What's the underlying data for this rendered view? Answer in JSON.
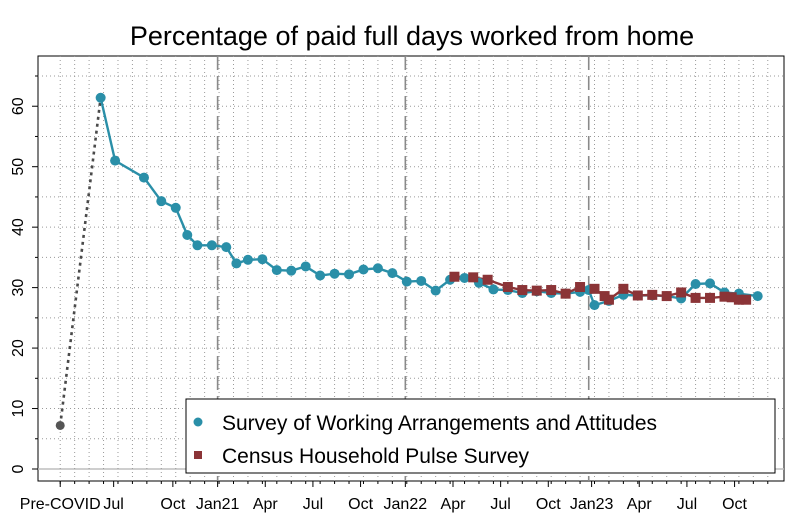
{
  "chart_data": {
    "type": "line",
    "title": "Percentage of paid full days worked from home",
    "xlabel": "",
    "ylabel": "",
    "ylim": [
      0,
      65
    ],
    "yticks": [
      0,
      10,
      20,
      30,
      40,
      50,
      60
    ],
    "xticks": [
      {
        "label": "Pre-COVID",
        "x": 0
      },
      {
        "label": "Jul",
        "x": 3.7
      },
      {
        "label": "Oct",
        "x": 7.8
      },
      {
        "label": "Jan21",
        "x": 10.9
      },
      {
        "label": "Apr",
        "x": 14.2
      },
      {
        "label": "Jul",
        "x": 17.5
      },
      {
        "label": "Oct",
        "x": 20.8
      },
      {
        "label": "Jan22",
        "x": 23.9
      },
      {
        "label": "Apr",
        "x": 27.2
      },
      {
        "label": "Jul",
        "x": 30.5
      },
      {
        "label": "Oct",
        "x": 33.8
      },
      {
        "label": "Jan23",
        "x": 36.8
      },
      {
        "label": "Apr",
        "x": 40.1
      },
      {
        "label": "Jul",
        "x": 43.4
      },
      {
        "label": "Oct",
        "x": 46.7
      }
    ],
    "xlim": [
      -0.5,
      49.5
    ],
    "event_lines": [
      10.9,
      23.9,
      36.6
    ],
    "grid": true,
    "legend_position": "bottom-right",
    "precovid_point": {
      "x": 0,
      "y": 7.2
    },
    "series": [
      {
        "name": "Survey of Working Arrangements and Attitudes",
        "color": "#2a8fa8",
        "marker": "circle",
        "x": [
          2.8,
          3.8,
          5.8,
          7.0,
          8.0,
          8.8,
          9.5,
          10.5,
          11.5,
          12.2,
          13.0,
          14.0,
          15.0,
          16.0,
          17.0,
          18.0,
          19.0,
          20.0,
          21.0,
          22.0,
          23.0,
          24.0,
          25.0,
          26.0,
          27.0,
          28.0,
          29.0,
          30.0,
          31.0,
          32.0,
          33.0,
          34.0,
          35.0,
          36.0,
          36.6,
          37.0,
          38.0,
          39.0,
          40.0,
          41.0,
          42.0,
          43.0,
          44.0,
          45.0,
          46.0,
          47.0,
          48.3
        ],
        "values": [
          61.4,
          51.0,
          48.2,
          44.3,
          43.2,
          38.7,
          37.0,
          37.0,
          36.7,
          34.0,
          34.6,
          34.7,
          32.9,
          32.8,
          33.5,
          32.0,
          32.3,
          32.2,
          33.0,
          33.2,
          32.4,
          31.0,
          31.1,
          29.5,
          31.3,
          31.6,
          30.8,
          29.7,
          29.6,
          29.1,
          29.4,
          29.1,
          29.0,
          29.3,
          29.6,
          27.1,
          27.8,
          28.8,
          28.7,
          28.7,
          28.6,
          28.2,
          30.6,
          30.7,
          29.2,
          29.0,
          28.6
        ]
      },
      {
        "name": "Census Household Pulse Survey",
        "color": "#8b3437",
        "marker": "square",
        "x": [
          27.3,
          28.6,
          29.6,
          31.0,
          32.0,
          33.0,
          34.0,
          35.0,
          36.0,
          37.0,
          37.7,
          38.0,
          39.0,
          40.0,
          41.0,
          42.0,
          43.0,
          44.0,
          45.0,
          46.0,
          46.5,
          47.0,
          47.5
        ],
        "values": [
          31.8,
          31.7,
          31.3,
          30.1,
          29.6,
          29.5,
          29.6,
          29.0,
          30.1,
          29.8,
          28.6,
          28.0,
          29.8,
          28.7,
          28.8,
          28.6,
          29.2,
          28.3,
          28.3,
          28.5,
          28.4,
          28.0,
          28.0
        ]
      }
    ]
  }
}
